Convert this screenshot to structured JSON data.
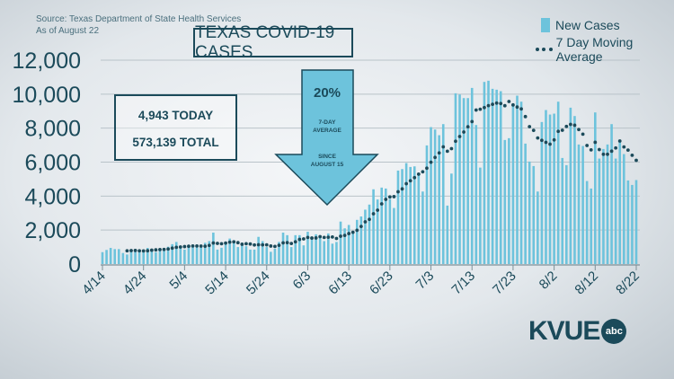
{
  "source": "Source: Texas Department of State Health Services",
  "as_of": "As of August 22",
  "stats": {
    "today": "4,943 TODAY",
    "total": "573,139 TOTAL"
  },
  "arrow": {
    "percent": "20%",
    "line1": "7-DAY",
    "line2": "AVERAGE",
    "line3": "SINCE",
    "line4": "AUGUST 15"
  },
  "logo": {
    "text": "KVUE",
    "network": "abc"
  },
  "colors": {
    "bars": "#6dc3dc",
    "average": "#1b4a5a",
    "text": "#1b4a5a"
  },
  "chart_data": {
    "type": "bar",
    "title": "TEXAS COVID-19 CASES",
    "start_date": "4/14",
    "end_date": "8/22",
    "xticks": [
      "4/14",
      "4/24",
      "5/4",
      "5/14",
      "5/24",
      "6/3",
      "6/13",
      "6/23",
      "7/3",
      "7/13",
      "7/23",
      "8/2",
      "8/12",
      "8/22"
    ],
    "yticks": [
      "0",
      "2,000",
      "4,000",
      "6,000",
      "8,000",
      "10,000",
      "12,000"
    ],
    "ylim": [
      0,
      12000
    ],
    "legend": [
      "New Cases",
      "7 Day Moving Average"
    ],
    "legend_position": "top-right",
    "series": [
      {
        "name": "New Cases",
        "type": "bar",
        "values": [
          700,
          830,
          950,
          880,
          880,
          650,
          560,
          780,
          880,
          830,
          830,
          950,
          880,
          700,
          880,
          950,
          1020,
          1170,
          1300,
          1020,
          850,
          1020,
          1080,
          1000,
          1120,
          1250,
          1350,
          1850,
          850,
          960,
          1250,
          1500,
          1400,
          1000,
          1200,
          1050,
          850,
          850,
          1600,
          1350,
          1000,
          720,
          900,
          1300,
          1850,
          1700,
          1000,
          1700,
          1700,
          1100,
          1900,
          1600,
          1750,
          1550,
          1350,
          1800,
          1200,
          1300,
          2500,
          2100,
          2300,
          1900,
          2600,
          2800,
          3200,
          3500,
          4400,
          3800,
          4500,
          4444,
          3826,
          3300,
          5502,
          5590,
          5943,
          5714,
          5749,
          5237,
          4268,
          6983,
          8060,
          7919,
          7584,
          8236,
          3441,
          5325,
          10050,
          9980,
          9768,
          9768,
          10367,
          8183,
          5678,
          10720,
          10791,
          10315,
          10262,
          10174,
          7302,
          7408,
          9310,
          9910,
          9557,
          7090,
          6032,
          5767,
          4268,
          8360,
          9064,
          8800,
          8853,
          9557,
          6243,
          5820,
          9204,
          8712,
          7037,
          6949,
          4885,
          4444,
          8924,
          6208,
          6772,
          7037,
          8236,
          6208,
          7302,
          6472,
          4920,
          4656,
          4943
        ]
      },
      {
        "name": "7 Day Moving Average",
        "type": "line",
        "method": "7-day trailing mean of New Cases"
      }
    ]
  }
}
